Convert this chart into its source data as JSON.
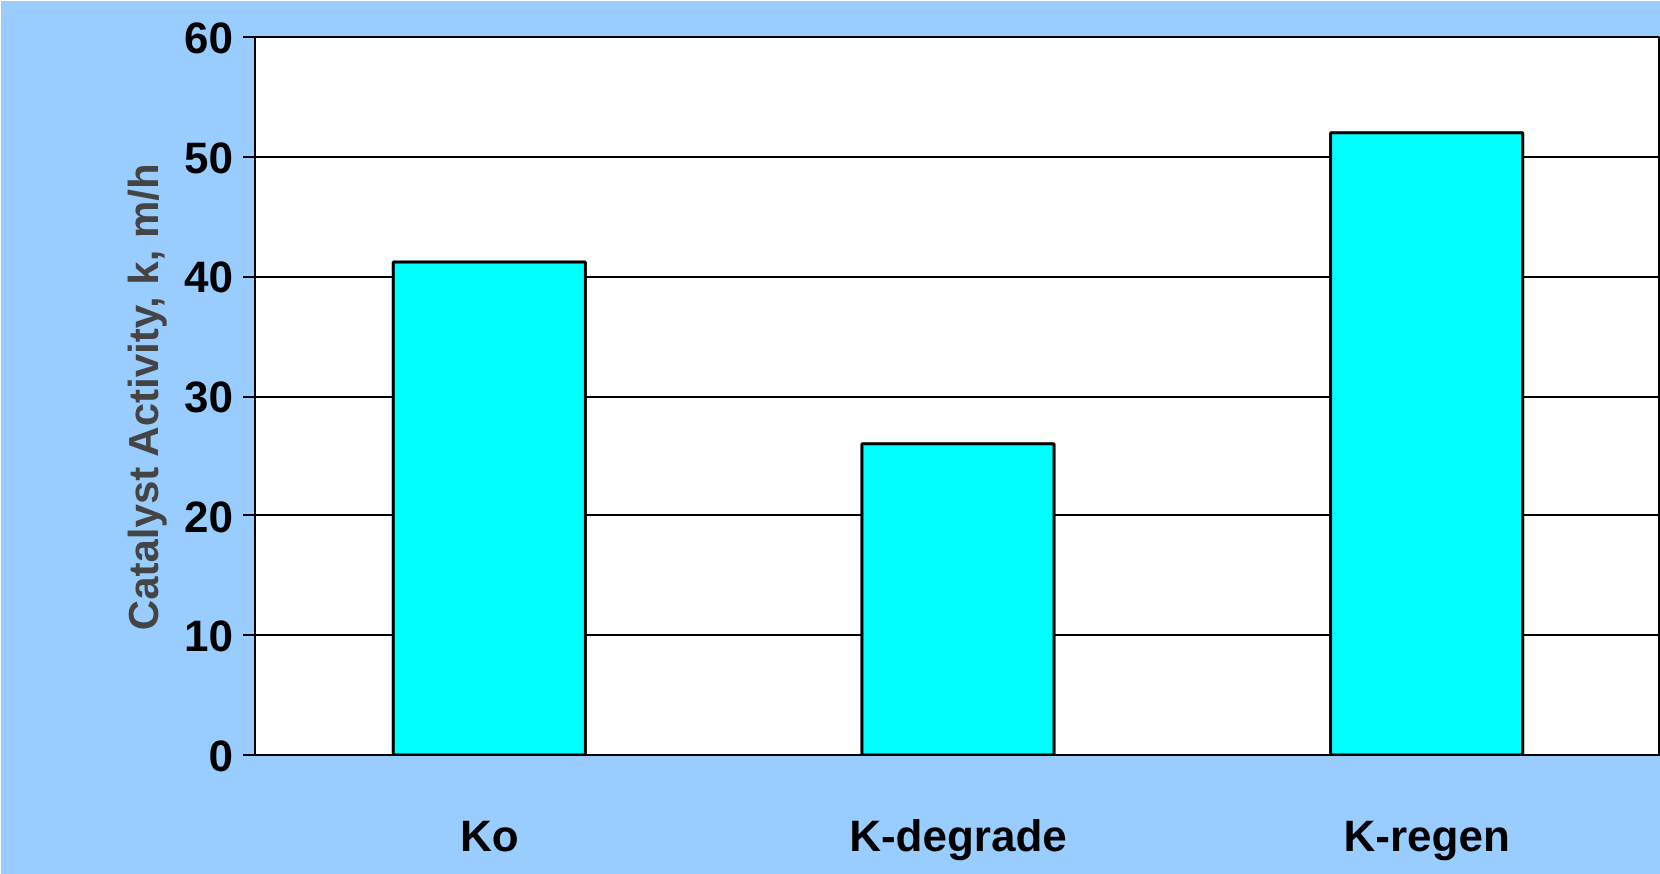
{
  "chart_data": {
    "type": "bar",
    "ylabel": "Catalyst Activity, k, m/h",
    "categories": [
      "Ko",
      "K-degrade",
      "K-regen"
    ],
    "values": [
      41.2,
      26,
      52
    ],
    "color": "#00ffff",
    "ylim": [
      0,
      60
    ],
    "yticks": [
      0,
      10,
      20,
      30,
      40,
      50,
      60
    ],
    "grid": "y"
  }
}
